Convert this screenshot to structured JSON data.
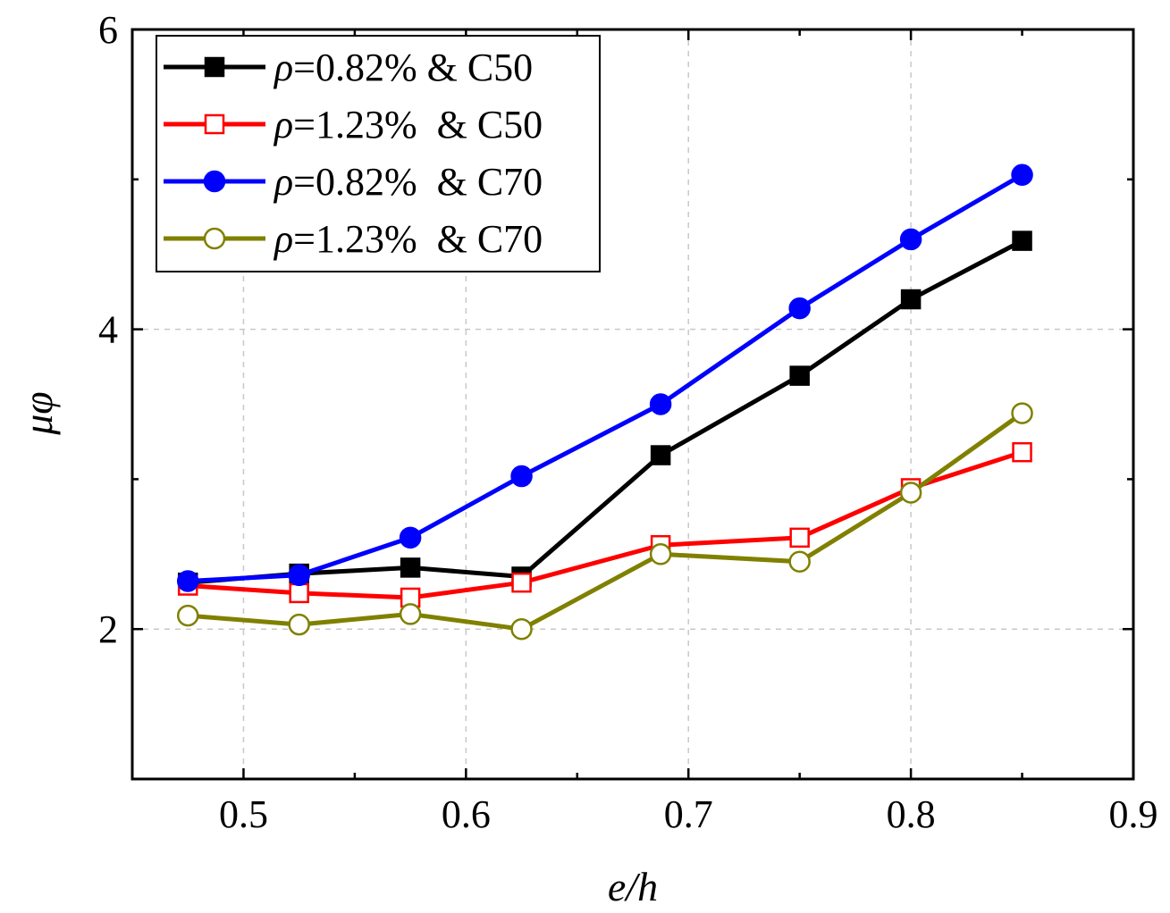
{
  "chart_data": {
    "type": "line",
    "title": "",
    "xlabel": "e/h",
    "ylabel": "μφ",
    "xlim": [
      0.45,
      0.9
    ],
    "ylim": [
      1.0,
      6.0
    ],
    "x_ticks": [
      0.5,
      0.6,
      0.7,
      0.8,
      0.9
    ],
    "x_tick_labels": [
      "0.5",
      "0.6",
      "0.7",
      "0.8",
      "0.9"
    ],
    "y_ticks": [
      2,
      4,
      6
    ],
    "y_tick_labels": [
      "2",
      "4",
      "6"
    ],
    "grid": true,
    "legend_position": "top-left",
    "x": [
      0.475,
      0.525,
      0.575,
      0.625,
      0.6875,
      0.75,
      0.8,
      0.85
    ],
    "series": [
      {
        "name": "ρ=0.82% & C50",
        "legend_symbol": "ρ",
        "legend_rest": "=0.82% & C50",
        "color": "#000000",
        "marker": "square-filled",
        "values": [
          2.31,
          2.37,
          2.41,
          2.35,
          3.16,
          3.69,
          4.2,
          4.59
        ]
      },
      {
        "name": "ρ=1.23%  & C50",
        "legend_symbol": "ρ",
        "legend_rest": "=1.23%  & C50",
        "color": "#ff0000",
        "marker": "square-open",
        "values": [
          2.29,
          2.24,
          2.21,
          2.31,
          2.56,
          2.61,
          2.94,
          3.18
        ]
      },
      {
        "name": "ρ=0.82%  & C70",
        "legend_symbol": "ρ",
        "legend_rest": "=0.82%  & C70",
        "color": "#0000ff",
        "marker": "circle-filled",
        "values": [
          2.32,
          2.36,
          2.61,
          3.02,
          3.5,
          4.14,
          4.6,
          5.03
        ]
      },
      {
        "name": "ρ=1.23%  & C70",
        "legend_symbol": "ρ",
        "legend_rest": "=1.23%  & C70",
        "color": "#808000",
        "marker": "circle-open",
        "values": [
          2.09,
          2.03,
          2.1,
          2.0,
          2.5,
          2.45,
          2.91,
          3.44
        ]
      }
    ]
  }
}
